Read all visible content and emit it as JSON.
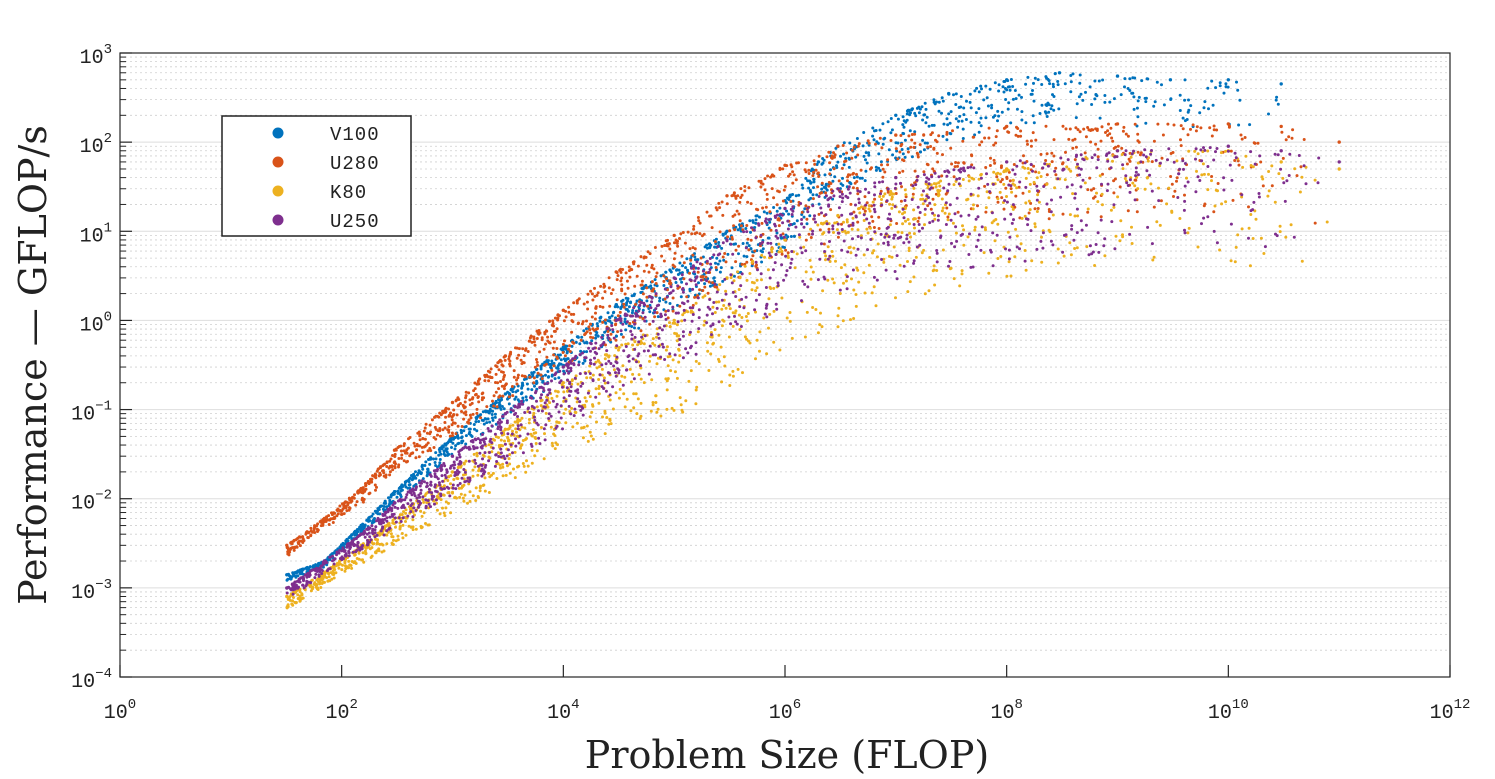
{
  "chart_data": {
    "type": "scatter",
    "title": "",
    "xlabel": "Problem Size (FLOP)",
    "ylabel": "Performance — GFLOP/s",
    "x_scale": "log",
    "y_scale": "log",
    "xlim": [
      1,
      1000000000000
    ],
    "ylim": [
      0.0001,
      1000
    ],
    "x_ticks": [
      {
        "base": "10",
        "exp": "0",
        "value": 1
      },
      {
        "base": "10",
        "exp": "2",
        "value": 100
      },
      {
        "base": "10",
        "exp": "4",
        "value": 10000
      },
      {
        "base": "10",
        "exp": "6",
        "value": 1000000
      },
      {
        "base": "10",
        "exp": "8",
        "value": 100000000
      },
      {
        "base": "10",
        "exp": "10",
        "value": 10000000000
      },
      {
        "base": "10",
        "exp": "12",
        "value": 1000000000000
      }
    ],
    "y_ticks": [
      {
        "base": "10",
        "exp": "3",
        "value": 1000
      },
      {
        "base": "10",
        "exp": "2",
        "value": 100
      },
      {
        "base": "10",
        "exp": "1",
        "value": 10
      },
      {
        "base": "10",
        "exp": "0",
        "value": 1
      },
      {
        "base": "10",
        "exp": "−1",
        "value": 0.1
      },
      {
        "base": "10",
        "exp": "−2",
        "value": 0.01
      },
      {
        "base": "10",
        "exp": "−3",
        "value": 0.001
      },
      {
        "base": "10",
        "exp": "−4",
        "value": 0.0001
      }
    ],
    "grid": true,
    "legend_position": "top-left",
    "series": [
      {
        "name": "V100",
        "color": "#0072bd",
        "points": [
          [
            32,
            0.0014
          ],
          [
            70,
            0.002
          ],
          [
            150,
            0.005
          ],
          [
            300,
            0.012
          ],
          [
            1000,
            0.05
          ],
          [
            3000,
            0.15
          ],
          [
            10000,
            0.5
          ],
          [
            30000,
            1.5
          ],
          [
            100000,
            4
          ],
          [
            300000,
            10
          ],
          [
            1000000,
            22
          ],
          [
            2000000,
            60
          ],
          [
            3000000,
            90
          ],
          [
            10000000,
            200
          ],
          [
            30000000,
            350
          ],
          [
            100000000,
            500
          ],
          [
            300000000,
            600
          ],
          [
            1000000000,
            550
          ],
          [
            3000000000,
            500
          ],
          [
            10000000000,
            500
          ],
          [
            30000000000,
            450
          ]
        ]
      },
      {
        "name": "U280",
        "color": "#d95319",
        "points": [
          [
            32,
            0.003
          ],
          [
            70,
            0.006
          ],
          [
            150,
            0.013
          ],
          [
            300,
            0.035
          ],
          [
            1000,
            0.12
          ],
          [
            3000,
            0.4
          ],
          [
            10000,
            1.3
          ],
          [
            30000,
            3.5
          ],
          [
            100000,
            9
          ],
          [
            300000,
            25
          ],
          [
            1000000,
            55
          ],
          [
            3000000,
            90
          ],
          [
            10000000,
            120
          ],
          [
            100000000,
            150
          ],
          [
            1000000000,
            160
          ],
          [
            10000000000,
            160
          ],
          [
            30000000000,
            150
          ],
          [
            100000000000,
            100
          ]
        ]
      },
      {
        "name": "K80",
        "color": "#edb120",
        "points": [
          [
            32,
            0.0008
          ],
          [
            70,
            0.0015
          ],
          [
            150,
            0.003
          ],
          [
            300,
            0.006
          ],
          [
            1000,
            0.02
          ],
          [
            3000,
            0.06
          ],
          [
            10000,
            0.2
          ],
          [
            30000,
            0.5
          ],
          [
            100000,
            1
          ],
          [
            300000,
            3
          ],
          [
            1000000,
            8
          ],
          [
            3000000,
            15
          ],
          [
            10000000,
            30
          ],
          [
            100000000,
            50
          ],
          [
            1000000000,
            80
          ],
          [
            10000000000,
            80
          ],
          [
            30000000000,
            60
          ],
          [
            100000000000,
            50
          ]
        ]
      },
      {
        "name": "U250",
        "color": "#7e2f8e",
        "points": [
          [
            32,
            0.001
          ],
          [
            70,
            0.002
          ],
          [
            150,
            0.004
          ],
          [
            300,
            0.009
          ],
          [
            1000,
            0.03
          ],
          [
            3000,
            0.09
          ],
          [
            10000,
            0.3
          ],
          [
            30000,
            1
          ],
          [
            100000,
            3
          ],
          [
            300000,
            8
          ],
          [
            1000000,
            18
          ],
          [
            3000000,
            30
          ],
          [
            10000000,
            40
          ],
          [
            100000000,
            60
          ],
          [
            1000000000,
            80
          ],
          [
            10000000000,
            90
          ],
          [
            30000000000,
            80
          ],
          [
            100000000000,
            60
          ]
        ]
      }
    ]
  }
}
